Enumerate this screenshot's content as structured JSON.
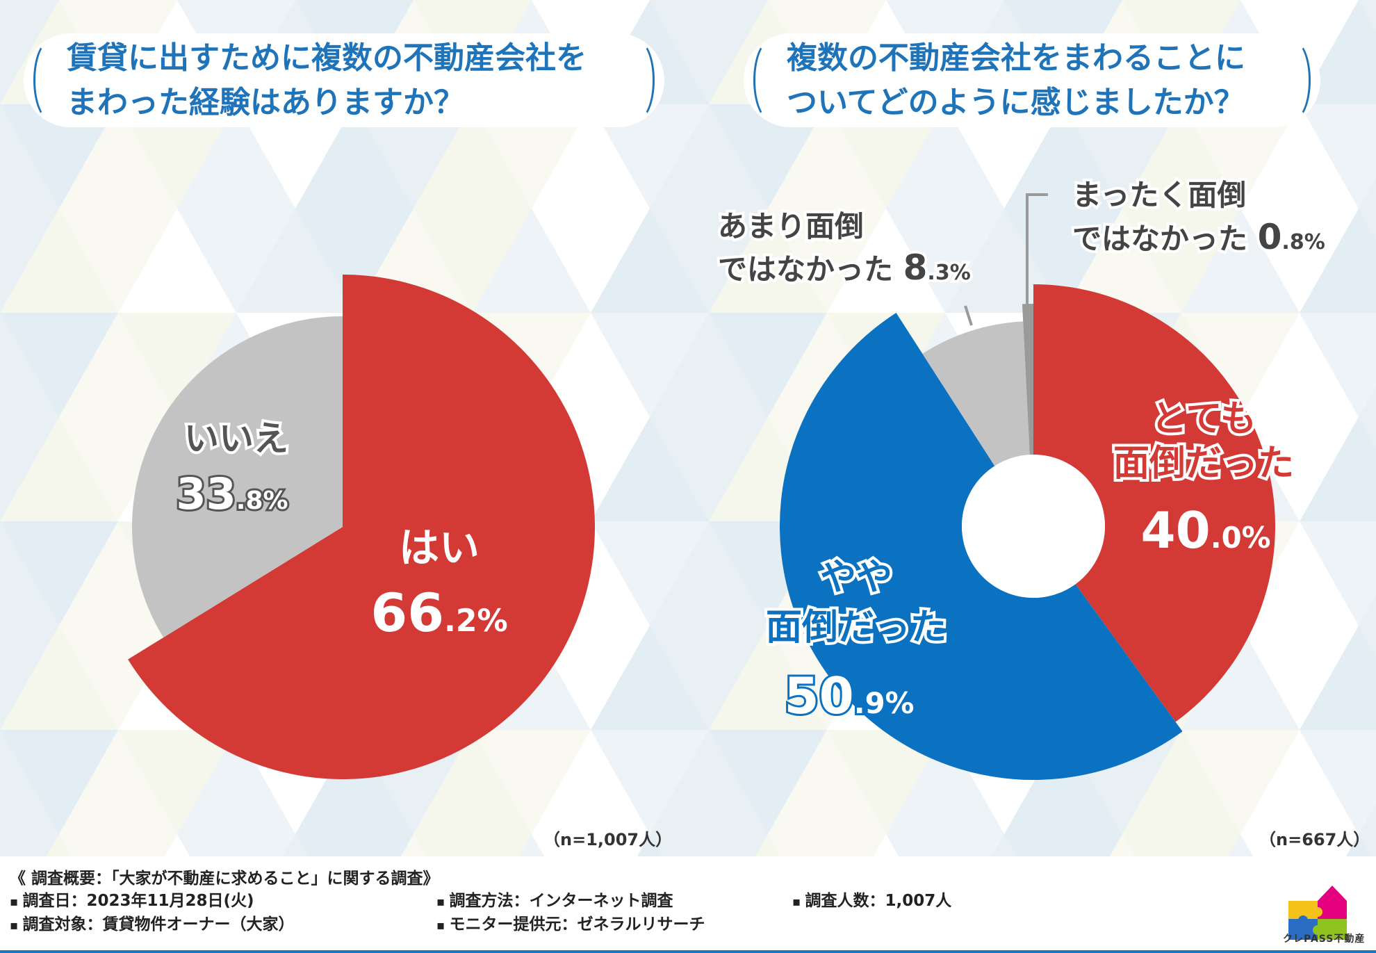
{
  "colors": {
    "red": "#d33a36",
    "blue": "#0b72c2",
    "gray": "#c3c3c3",
    "darkgray": "#9a9a9a",
    "title_blue": "#1f74b9"
  },
  "left": {
    "title_line1": "賃貸に出すために複数の不動産会社を",
    "title_line2": "まわった経験はありますか？",
    "n_note": "（n=1,007人）"
  },
  "right": {
    "title_line1": "複数の不動産会社をまわることに",
    "title_line2": "ついてどのように感じましたか？",
    "n_note": "（n=667人）"
  },
  "chart_data": [
    {
      "type": "pie",
      "title": "賃貸に出すために複数の不動産会社をまわった経験はありますか？",
      "categories": [
        "はい",
        "いいえ"
      ],
      "values": [
        66.2,
        33.8
      ],
      "labels": [
        {
          "name": "はい",
          "big": "66",
          "small": ".2%",
          "color": "red"
        },
        {
          "name": "いいえ",
          "big": "33",
          "small": ".8%",
          "color": "gray"
        }
      ],
      "n": "n=1,007人"
    },
    {
      "type": "pie",
      "donut": true,
      "title": "複数の不動産会社をまわることについてどのように感じましたか？",
      "categories": [
        "とても面倒だった",
        "やや面倒だった",
        "あまり面倒ではなかった",
        "まったく面倒ではなかった"
      ],
      "values": [
        40.0,
        50.9,
        8.3,
        0.8
      ],
      "labels": [
        {
          "line1": "とても",
          "line2": "面倒だった",
          "big": "40",
          "small": ".0%",
          "color": "red"
        },
        {
          "line1": "やや",
          "line2": "面倒だった",
          "big": "50",
          "small": ".9%",
          "color": "blue"
        },
        {
          "line1": "あまり面倒",
          "line2": "ではなかった",
          "big": "8",
          "small": ".3%",
          "color": "gray"
        },
        {
          "line1": "まったく面倒",
          "line2": "ではなかった",
          "big": "0",
          "small": ".8%",
          "color": "darkgray"
        }
      ],
      "n": "n=667人"
    }
  ],
  "footer": {
    "heading": "《 調査概要：「大家が不動産に求めること」に関する調査》",
    "date": "調査日：2023年11月28日(火)",
    "target": "調査対象：賃貸物件オーナー（大家）",
    "method": "調査方法：インターネット調査",
    "provider": "モニター提供元：ゼネラルリサーチ",
    "count": "調査人数：1,007人",
    "logo_text": "クレPASS不動産"
  }
}
